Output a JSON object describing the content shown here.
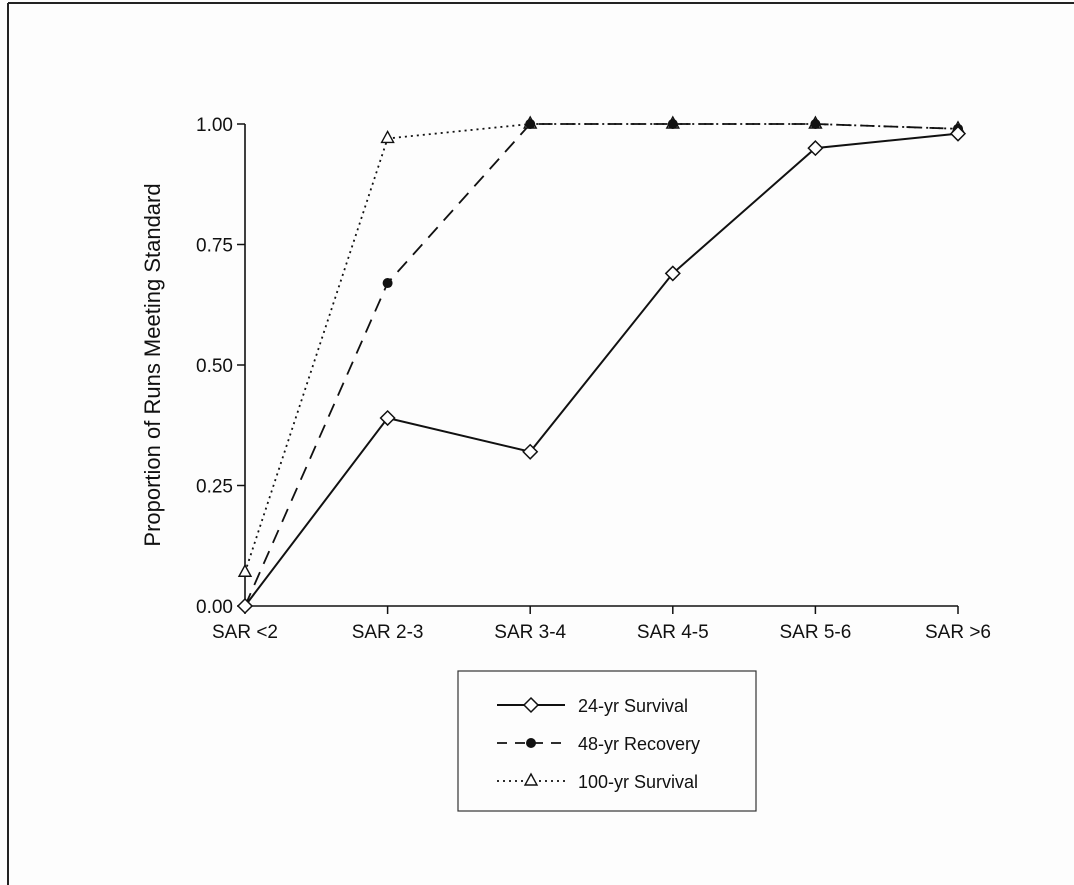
{
  "chart_data": {
    "type": "line",
    "categories": [
      "SAR <2",
      "SAR 2-3",
      "SAR 3-4",
      "SAR 4-5",
      "SAR 5-6",
      "SAR >6"
    ],
    "ylabel": "Proportion of Runs Meeting Standard",
    "yticks": [
      "0.00",
      "0.25",
      "0.50",
      "0.75",
      "1.00"
    ],
    "ylim": [
      0,
      1
    ],
    "grid": false,
    "legend_position": "bottom-center",
    "series": [
      {
        "name": "24-yr Survival",
        "marker": "diamond-open",
        "line": "solid",
        "values": [
          0.0,
          0.39,
          0.32,
          0.69,
          0.95,
          0.98
        ]
      },
      {
        "name": "48-yr Recovery",
        "marker": "circle-filled",
        "line": "dashed",
        "values": [
          0.0,
          0.67,
          1.0,
          1.0,
          1.0,
          0.99
        ]
      },
      {
        "name": "100-yr Survival",
        "marker": "triangle-open",
        "line": "dotted",
        "values": [
          0.07,
          0.97,
          1.0,
          1.0,
          1.0,
          0.99
        ]
      }
    ]
  }
}
